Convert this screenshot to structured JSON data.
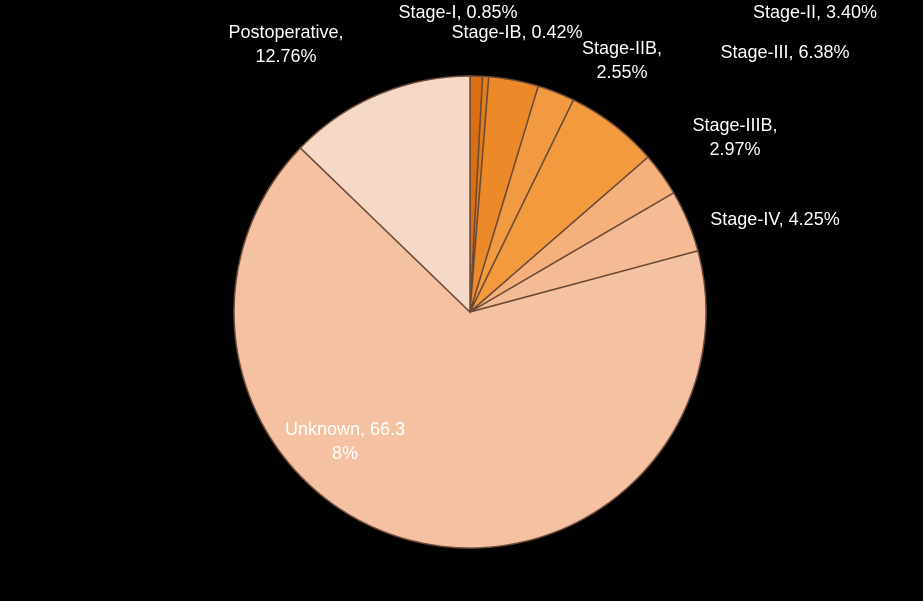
{
  "chart_data": {
    "type": "pie",
    "labels": [
      "Stage-I, 0.85%",
      "Stage-IB, 0.42%",
      "Stage-II, 3.40%",
      "Stage-IIB, 2.55%",
      "Stage-III, 6.38%",
      "Stage-IIIB, 2.97%",
      "Stage-IV, 4.25%",
      "Unknown, 66.38%",
      "Postoperative, 12.76%"
    ],
    "values": [
      0.85,
      0.42,
      3.4,
      2.55,
      6.38,
      2.97,
      4.25,
      66.38,
      12.76
    ],
    "colors": [
      "#d96f12",
      "#e27d1c",
      "#ec8a2a",
      "#f19a42",
      "#f39a3e",
      "#f5b07c",
      "#f5bb94",
      "#f4c2a2",
      "#f6d8c6"
    ]
  }
}
